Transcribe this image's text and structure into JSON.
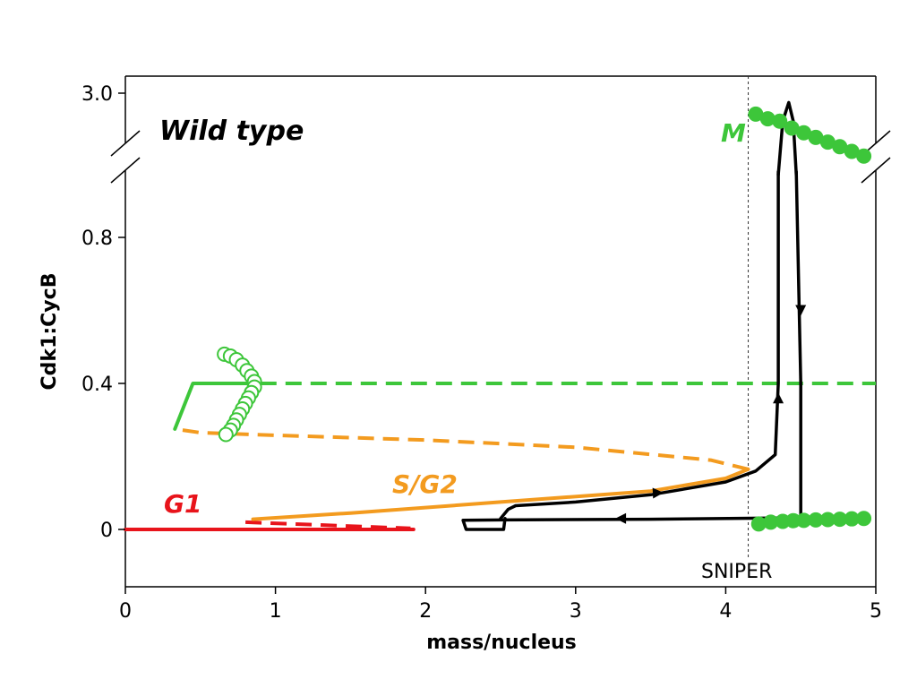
{
  "chart_data": {
    "type": "line",
    "title": "Wild type",
    "xlabel": "mass/nucleus",
    "ylabel": "Cdk1:CycB",
    "xlim": [
      0,
      5
    ],
    "ylim": [
      -0.15,
      3.0
    ],
    "x_ticks": [
      0,
      1,
      2,
      3,
      4,
      5
    ],
    "y_ticks": [
      0,
      0.4,
      0.8,
      3.0
    ],
    "y_tick_labels": [
      "0",
      "0.4",
      "0.8",
      "3.0"
    ],
    "y_axis_break": [
      1.0,
      2.6
    ],
    "annotations": [
      {
        "text": "G1",
        "color": "#e8141b"
      },
      {
        "text": "S/G2",
        "color": "#f39b1f"
      },
      {
        "text": "M",
        "color": "#3dc63a"
      },
      {
        "text": "SNIPER",
        "color": "#000000"
      }
    ],
    "sniper_x": 4.15,
    "colors": {
      "g1": "#e8141b",
      "sg2": "#f39b1f",
      "m": "#3dc63a",
      "trajectory": "#000000"
    },
    "series": [
      {
        "style": "solid",
        "color": "#e8141b",
        "points": [
          [
            0,
            0
          ],
          [
            1.92,
            0
          ]
        ]
      },
      {
        "style": "dashed",
        "color": "#e8141b",
        "points": [
          [
            0.8,
            0.02
          ],
          [
            1.9,
            0.003
          ]
        ]
      },
      {
        "style": "solid",
        "color": "#f39b1f",
        "points": [
          [
            0.85,
            0.028
          ],
          [
            1.5,
            0.045
          ],
          [
            2.5,
            0.075
          ],
          [
            3.5,
            0.105
          ],
          [
            4.0,
            0.14
          ],
          [
            4.15,
            0.165
          ]
        ]
      },
      {
        "style": "dashed",
        "color": "#f39b1f",
        "points": [
          [
            4.15,
            0.165
          ],
          [
            3.9,
            0.19
          ],
          [
            3.0,
            0.225
          ],
          [
            2.0,
            0.245
          ],
          [
            1.0,
            0.258
          ],
          [
            0.5,
            0.265
          ],
          [
            0.33,
            0.275
          ]
        ]
      },
      {
        "style": "solid",
        "color": "#3dc63a",
        "points": [
          [
            0.33,
            0.275
          ],
          [
            0.45,
            0.4
          ],
          [
            0.9,
            0.4
          ]
        ]
      },
      {
        "style": "dashed",
        "color": "#3dc63a",
        "points": [
          [
            0.9,
            0.4
          ],
          [
            5.0,
            0.4
          ]
        ]
      },
      {
        "style": "open-circles",
        "color": "#3dc63a",
        "points": [
          [
            0.66,
            0.48
          ],
          [
            0.7,
            0.475
          ],
          [
            0.74,
            0.465
          ],
          [
            0.78,
            0.45
          ],
          [
            0.81,
            0.435
          ],
          [
            0.84,
            0.42
          ],
          [
            0.86,
            0.405
          ],
          [
            0.86,
            0.39
          ],
          [
            0.84,
            0.375
          ],
          [
            0.82,
            0.36
          ],
          [
            0.8,
            0.345
          ],
          [
            0.78,
            0.33
          ],
          [
            0.76,
            0.315
          ],
          [
            0.74,
            0.3
          ],
          [
            0.72,
            0.285
          ],
          [
            0.7,
            0.272
          ],
          [
            0.67,
            0.26
          ]
        ]
      },
      {
        "style": "filled-circles",
        "color": "#3dc63a",
        "points": [
          [
            4.22,
            0.015
          ],
          [
            4.3,
            0.02
          ],
          [
            4.38,
            0.022
          ],
          [
            4.45,
            0.024
          ],
          [
            4.52,
            0.025
          ],
          [
            4.6,
            0.026
          ],
          [
            4.68,
            0.027
          ],
          [
            4.76,
            0.028
          ],
          [
            4.84,
            0.029
          ],
          [
            4.92,
            0.03
          ]
        ]
      },
      {
        "style": "filled-circles",
        "color": "#3dc63a",
        "points": [
          [
            4.2,
            2.91
          ],
          [
            4.28,
            2.89
          ],
          [
            4.36,
            2.88
          ],
          [
            4.44,
            2.85
          ],
          [
            4.52,
            2.83
          ],
          [
            4.6,
            2.81
          ],
          [
            4.68,
            2.79
          ],
          [
            4.76,
            2.77
          ],
          [
            4.84,
            2.75
          ],
          [
            4.92,
            2.73
          ]
        ]
      },
      {
        "style": "solid",
        "color": "#000000",
        "points": [
          [
            2.5,
            0.03
          ],
          [
            2.55,
            0.055
          ],
          [
            2.6,
            0.065
          ],
          [
            3.0,
            0.075
          ],
          [
            3.5,
            0.095
          ],
          [
            4.0,
            0.13
          ],
          [
            4.2,
            0.16
          ],
          [
            4.33,
            0.205
          ],
          [
            4.35,
            0.4
          ],
          [
            4.35,
            0.98
          ]
        ]
      },
      {
        "style": "solid",
        "color": "#000000",
        "points": [
          [
            4.35,
            2.65
          ],
          [
            4.38,
            2.88
          ],
          [
            4.42,
            2.96
          ],
          [
            4.45,
            2.88
          ],
          [
            4.47,
            2.65
          ]
        ]
      },
      {
        "style": "solid",
        "color": "#000000",
        "points": [
          [
            4.47,
            0.98
          ],
          [
            4.5,
            0.4
          ],
          [
            4.5,
            0.032
          ],
          [
            3.5,
            0.028
          ],
          [
            2.5,
            0.026
          ],
          [
            2.25,
            0.025
          ],
          [
            2.27,
            0
          ],
          [
            2.52,
            0
          ],
          [
            2.53,
            0.03
          ]
        ]
      }
    ],
    "arrows": [
      {
        "at": [
          3.55,
          0.1
        ],
        "dir": [
          1,
          0.05
        ]
      },
      {
        "at": [
          4.35,
          0.36
        ],
        "dir": [
          0,
          1
        ]
      },
      {
        "at": [
          4.5,
          0.6
        ],
        "dir": [
          0,
          -1
        ]
      },
      {
        "at": [
          3.3,
          0.03
        ],
        "dir": [
          -1,
          0
        ]
      }
    ]
  }
}
